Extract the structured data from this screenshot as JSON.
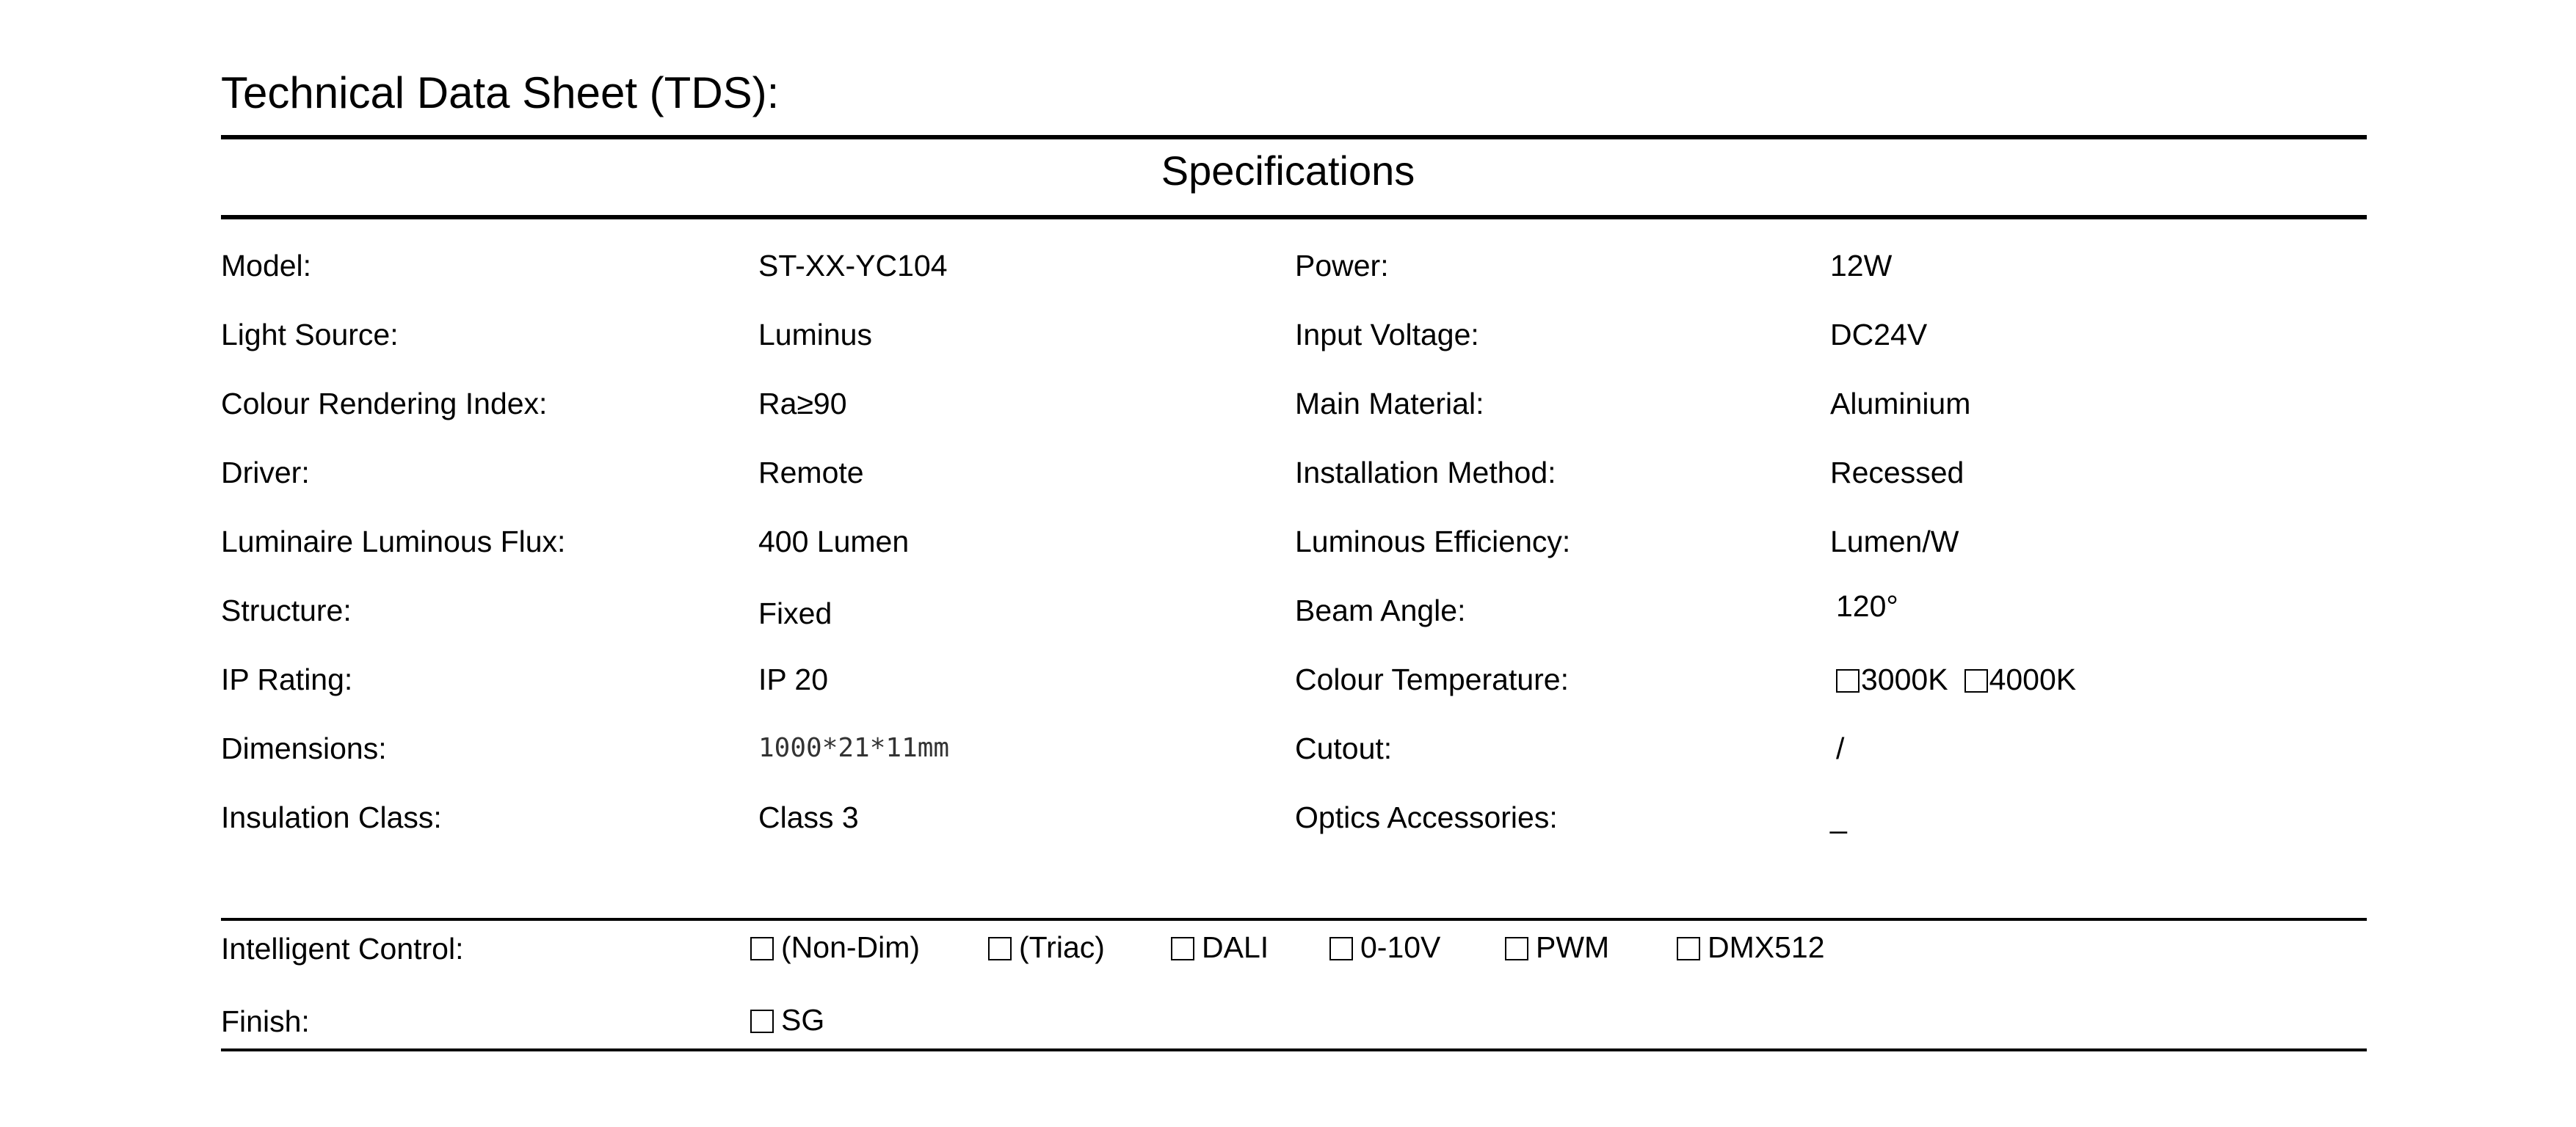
{
  "title": "Technical Data Sheet (TDS):",
  "section_title": "Specifications",
  "specs_left": [
    {
      "label": "Model:",
      "value": "ST-XX-YC104"
    },
    {
      "label": "Light Source:",
      "value": "Luminus"
    },
    {
      "label": "Colour Rendering Index:",
      "value": "Ra≥90"
    },
    {
      "label": "Driver:",
      "value": "Remote"
    },
    {
      "label": "Luminaire Luminous Flux:",
      "value": "400  Lumen"
    },
    {
      "label": "Structure:",
      "value": "Fixed"
    },
    {
      "label": "IP Rating:",
      "value": "IP 20"
    },
    {
      "label": "Dimensions:",
      "value": "1000*21*11mm"
    },
    {
      "label": "Insulation Class:",
      "value": "Class 3"
    }
  ],
  "specs_right": [
    {
      "label": "Power:",
      "value": "12W"
    },
    {
      "label": "Input Voltage:",
      "value": "DC24V"
    },
    {
      "label": "Main Material:",
      "value": "Aluminium"
    },
    {
      "label": "Installation Method:",
      "value": "Recessed"
    },
    {
      "label": "Luminous Efficiency:",
      "value": "Lumen/W"
    },
    {
      "label": "Beam Angle:",
      "value": "120°"
    },
    {
      "label": "Colour Temperature:",
      "value": ""
    },
    {
      "label": "Cutout:",
      "value": "/"
    },
    {
      "label": "Optics Accessories:",
      "value": "_"
    }
  ],
  "colour_temperature_options": [
    {
      "label": "3000K",
      "checked": false
    },
    {
      "label": "4000K",
      "checked": false
    }
  ],
  "intelligent_control": {
    "label": "Intelligent Control:",
    "options": [
      {
        "label": "(Non-Dim)",
        "checked": false
      },
      {
        "label": "(Triac)",
        "checked": false
      },
      {
        "label": "DALI",
        "checked": false
      },
      {
        "label": "0-10V",
        "checked": false
      },
      {
        "label": "PWM",
        "checked": false
      },
      {
        "label": "DMX512",
        "checked": false
      }
    ]
  },
  "finish": {
    "label": "Finish:",
    "options": [
      {
        "label": "SG",
        "checked": false
      }
    ]
  }
}
